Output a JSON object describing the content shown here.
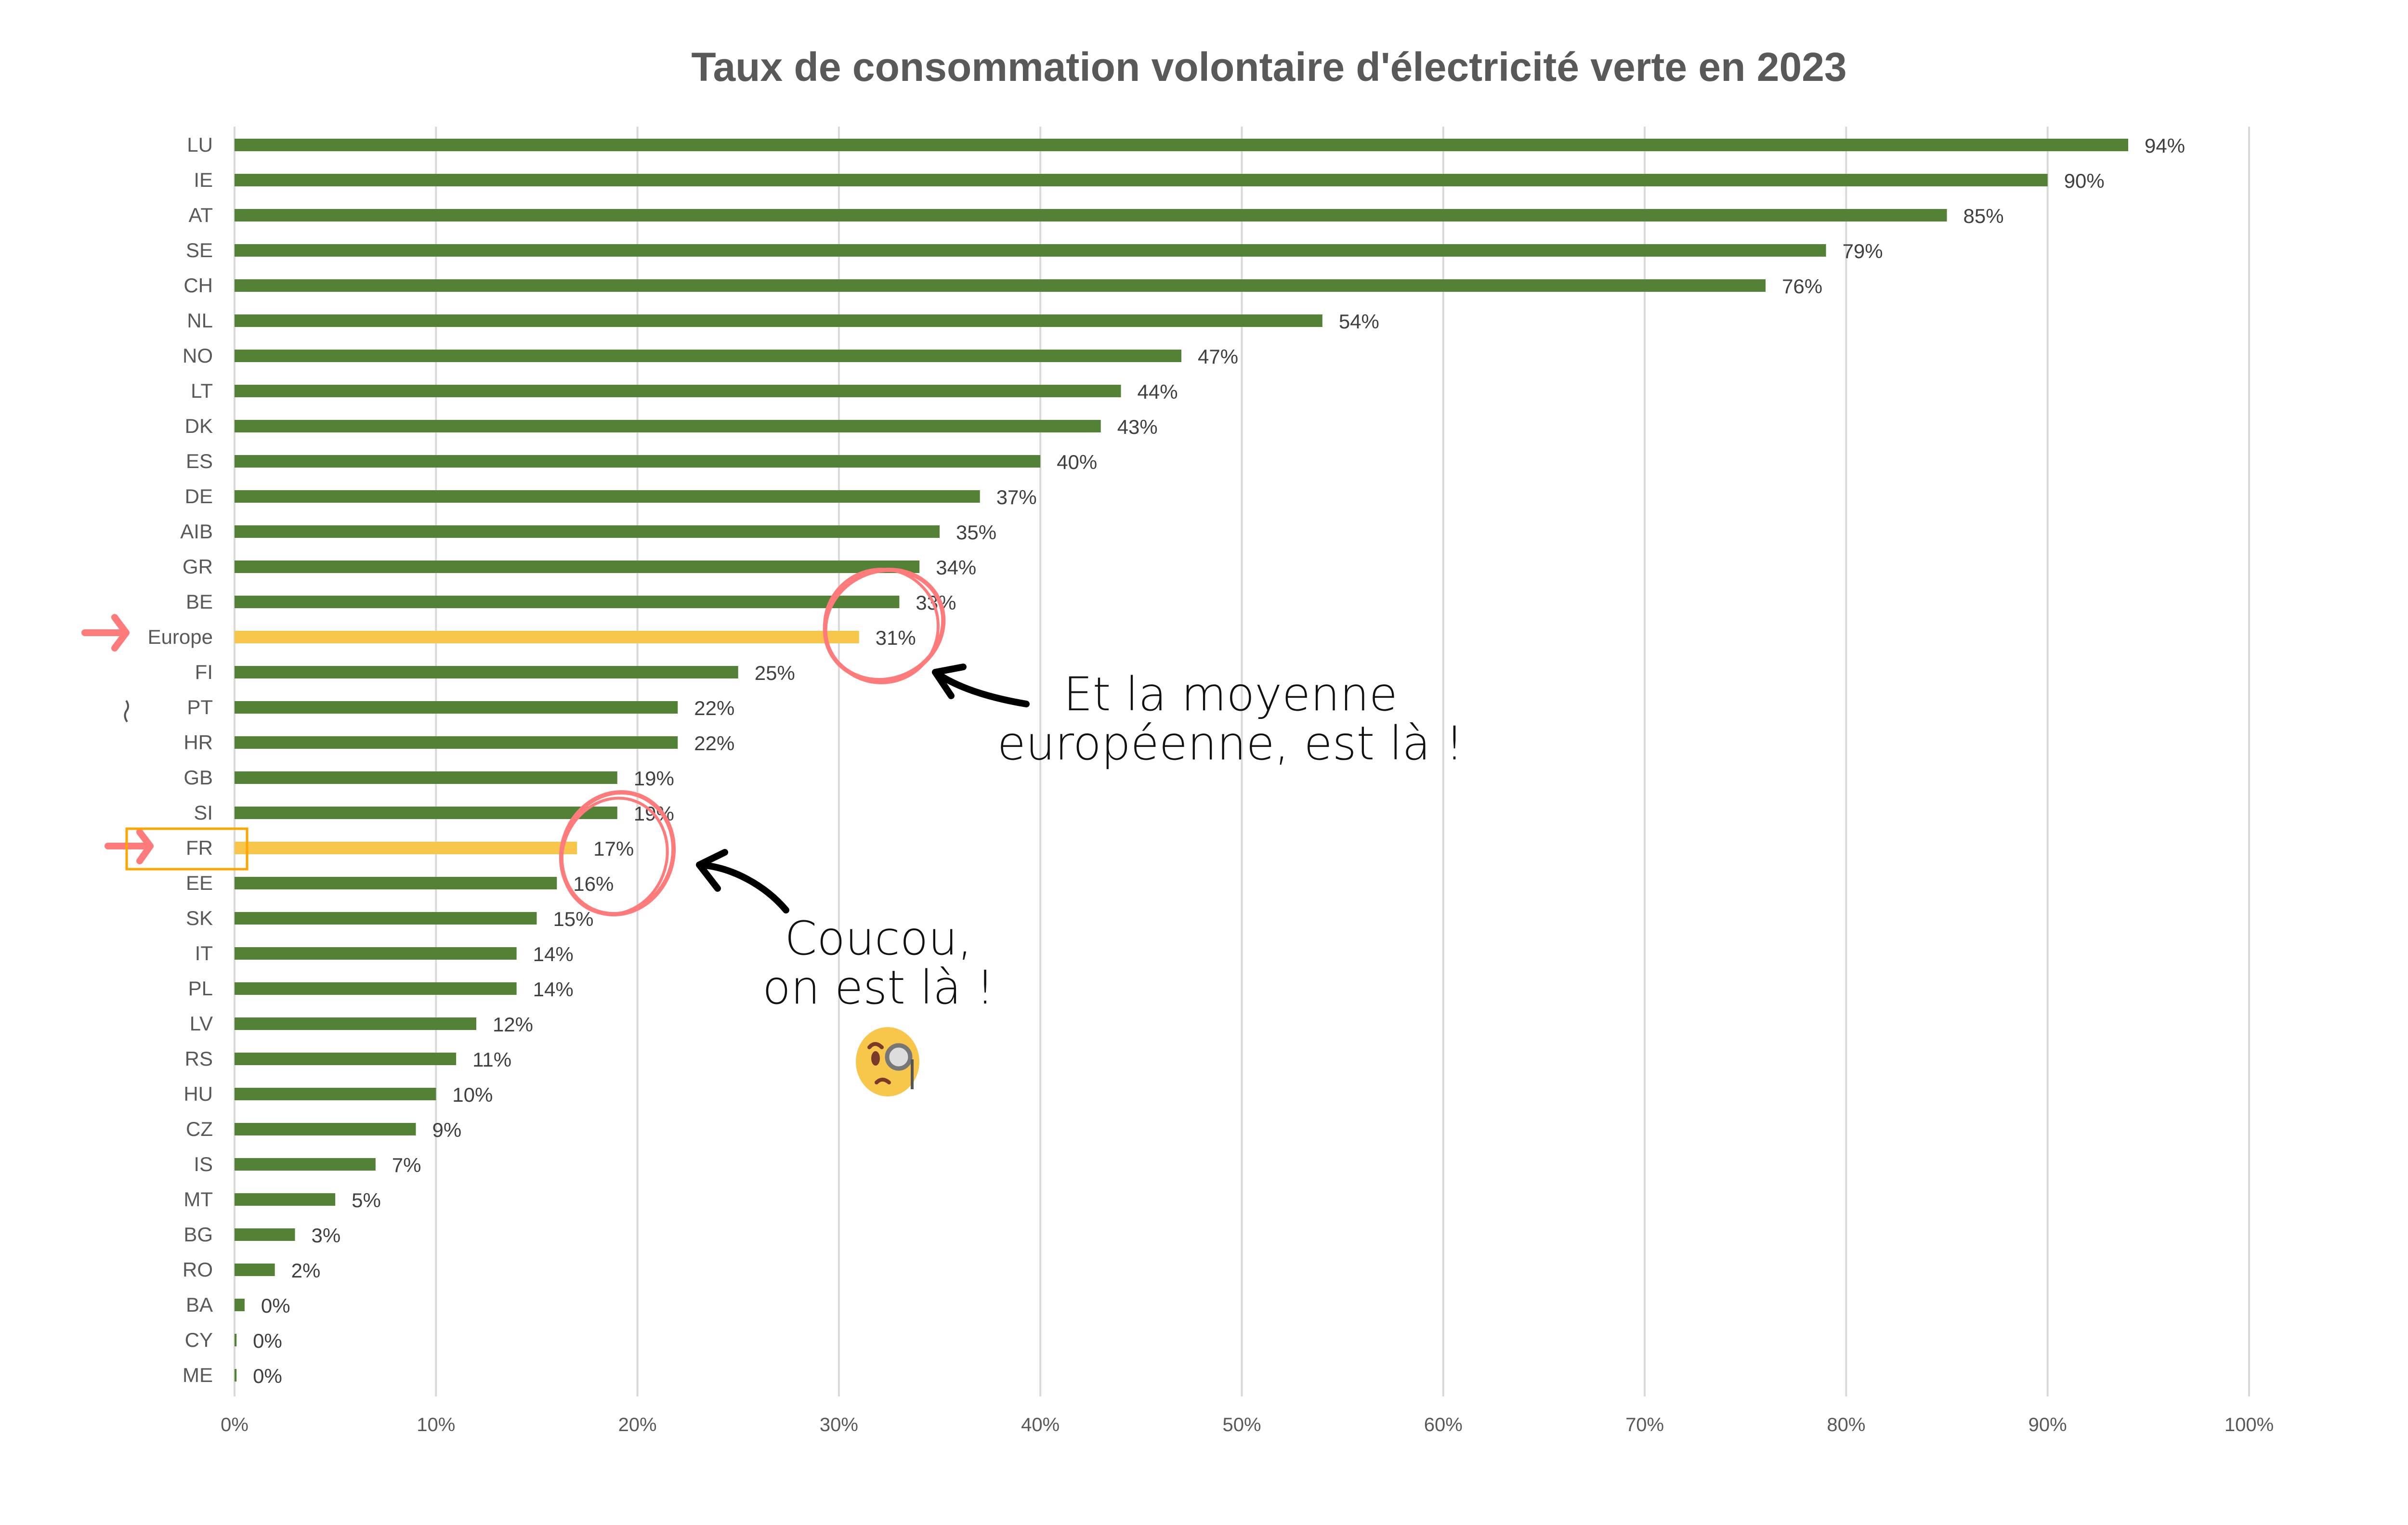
{
  "chart_data": {
    "type": "bar",
    "orientation": "horizontal",
    "title": "Taux de consommation volontaire d'électricité verte en 2023",
    "categories": [
      "LU",
      "IE",
      "AT",
      "SE",
      "CH",
      "NL",
      "NO",
      "LT",
      "DK",
      "ES",
      "DE",
      "AIB",
      "GR",
      "BE",
      "Europe",
      "FI",
      "PT",
      "HR",
      "GB",
      "SI",
      "FR",
      "EE",
      "SK",
      "IT",
      "PL",
      "LV",
      "RS",
      "HU",
      "CZ",
      "IS",
      "MT",
      "BG",
      "RO",
      "BA",
      "CY",
      "ME"
    ],
    "values": [
      94,
      90,
      85,
      79,
      76,
      54,
      47,
      44,
      43,
      40,
      37,
      35,
      34,
      33,
      31,
      25,
      22,
      22,
      19,
      19,
      17,
      16,
      15,
      14,
      14,
      12,
      11,
      10,
      9,
      7,
      5,
      3,
      2,
      0.5,
      0.1,
      0.1
    ],
    "data_labels": [
      "94%",
      "90%",
      "85%",
      "79%",
      "76%",
      "54%",
      "47%",
      "44%",
      "43%",
      "40%",
      "37%",
      "35%",
      "34%",
      "33%",
      "31%",
      "25%",
      "22%",
      "22%",
      "19%",
      "19%",
      "17%",
      "16%",
      "15%",
      "14%",
      "14%",
      "12%",
      "11%",
      "10%",
      "9%",
      "7%",
      "5%",
      "3%",
      "2%",
      "0%",
      "0%",
      "0%"
    ],
    "highlighted": [
      "Europe",
      "FR"
    ],
    "xlim": [
      0,
      100
    ],
    "x_ticks": [
      "0%",
      "10%",
      "20%",
      "30%",
      "40%",
      "50%",
      "60%",
      "70%",
      "80%",
      "90%",
      "100%"
    ],
    "grid": true,
    "legend": "none",
    "colors": {
      "bar": "#538135",
      "highlight": "#F7C64A",
      "annotation": "#FF7B7B",
      "frame": "#FFA500"
    }
  },
  "annotations": {
    "europe_line1": "Et la moyenne",
    "europe_line2": "européenne, est là !",
    "fr_line1": "Coucou,",
    "fr_line2": "on est là !",
    "emoji": "face-with-monocle"
  }
}
